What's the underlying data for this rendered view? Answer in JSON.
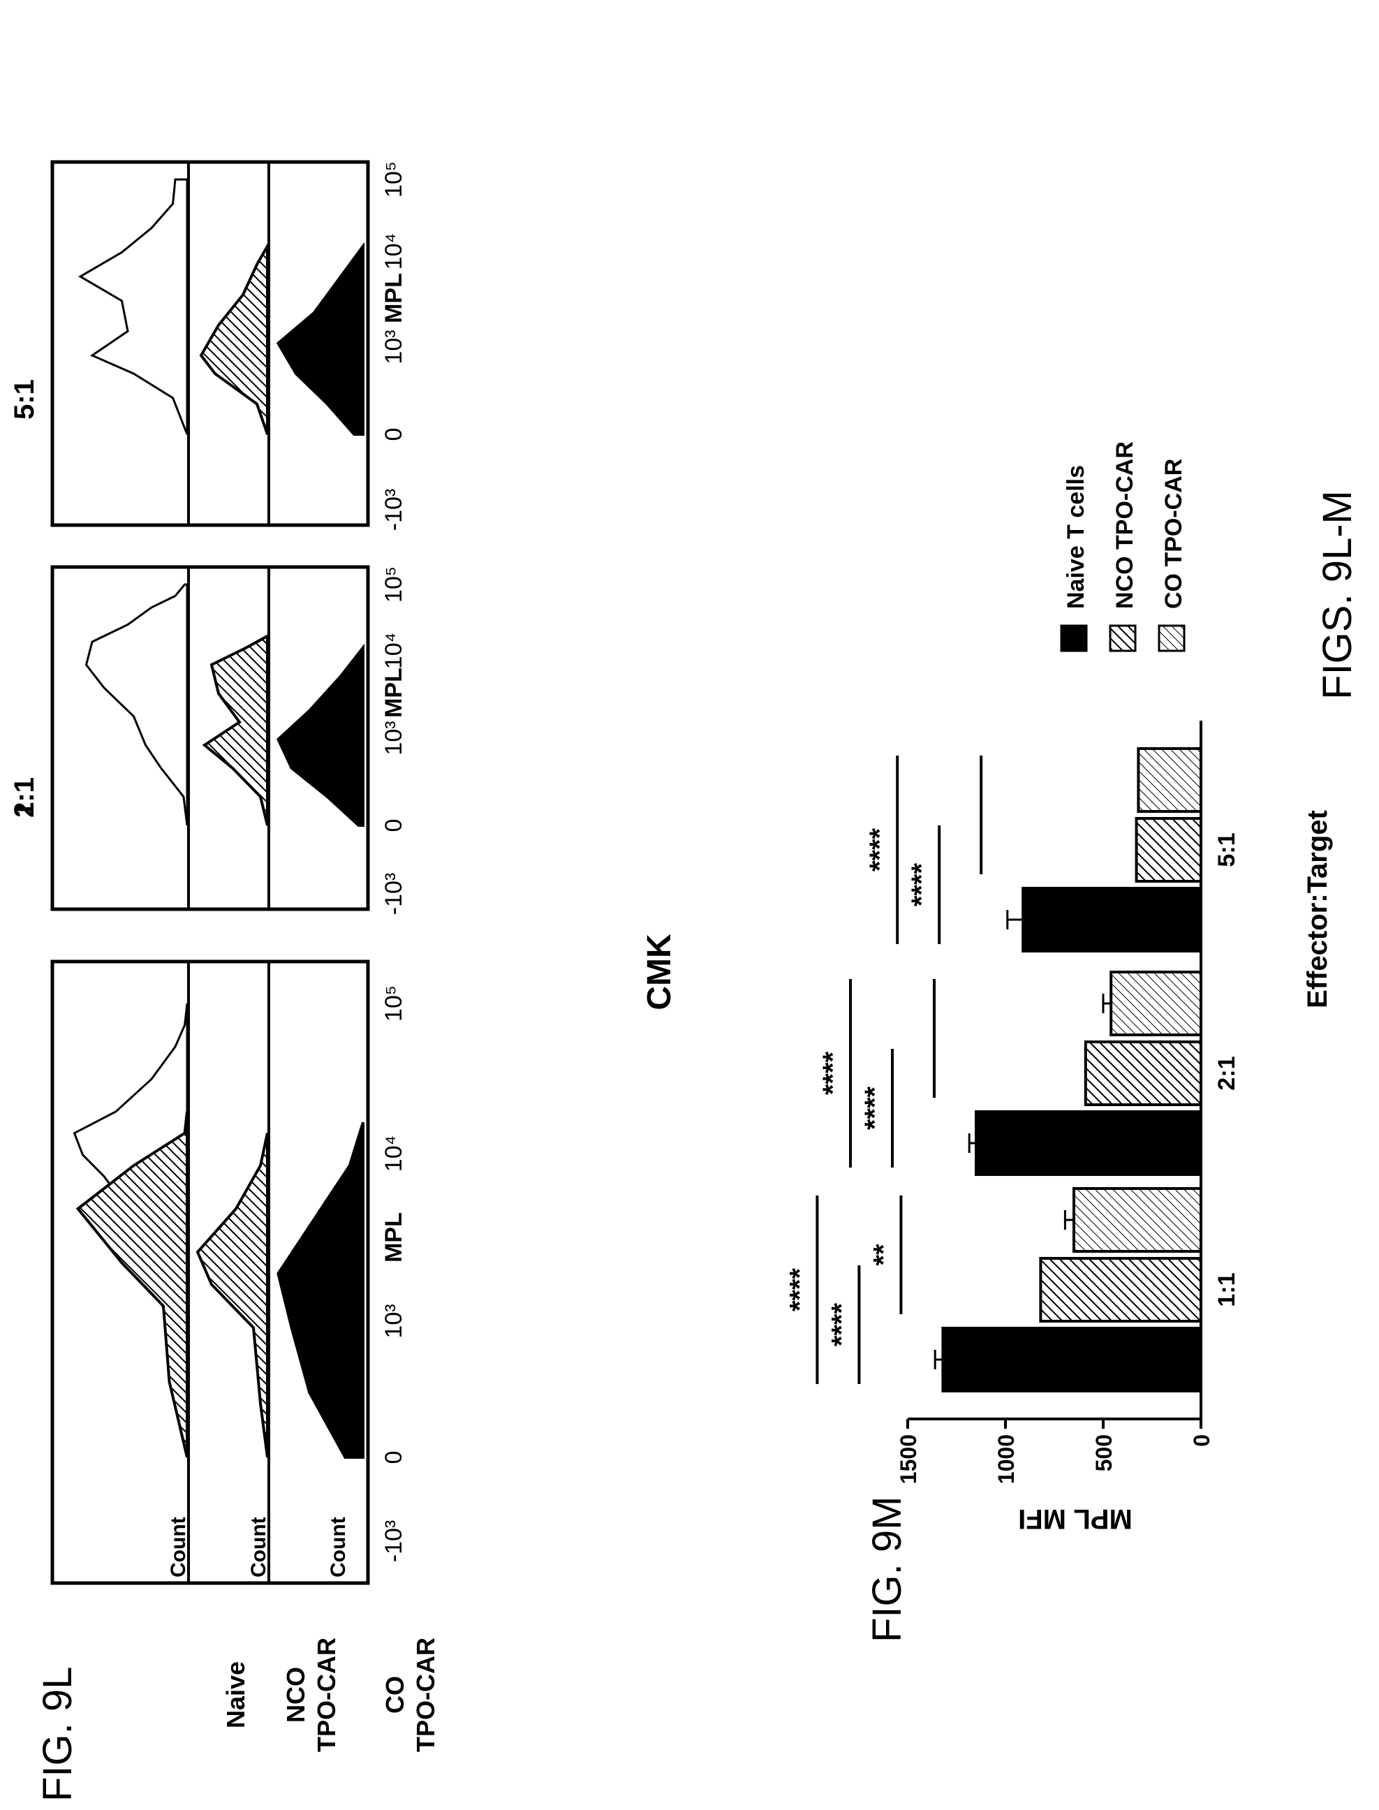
{
  "figure_l": {
    "label": "FIG. 9L",
    "row_labels": [
      {
        "lines": [
          "Naive"
        ]
      },
      {
        "lines": [
          "NCO",
          "TPO-CAR"
        ]
      },
      {
        "lines": [
          "CO",
          "TPO-CAR"
        ]
      }
    ],
    "panels": [
      {
        "title": "1:1",
        "show_count": true
      },
      {
        "title": "2:1",
        "show_count": false
      },
      {
        "title": "5:1",
        "show_count": false
      }
    ],
    "count_label": "Count",
    "x_ticks": [
      "-10³",
      "0",
      "10³",
      "10⁴",
      "10⁵"
    ],
    "x_label": "MPL"
  },
  "figure_m": {
    "label": "FIG. 9M",
    "title": "CMK",
    "legend": [
      {
        "name": "Naive T cells",
        "fill": "solid"
      },
      {
        "name": "NCO TPO-CAR",
        "fill": "hatch"
      },
      {
        "name": "CO TPO-CAR",
        "fill": "light-hatch"
      }
    ],
    "significance": {
      "1:1": {
        "naive_vs_co": "****",
        "naive_vs_nco": "****",
        "nco_vs_co": "**"
      },
      "2:1": {
        "naive_vs_co": "****",
        "naive_vs_nco": "****",
        "nco_vs_co": ""
      },
      "5:1": {
        "naive_vs_co": "****",
        "naive_vs_nco": "****",
        "nco_vs_co": ""
      }
    }
  },
  "figure_caption": "FIGS. 9L-M",
  "chart_data": [
    {
      "type": "area",
      "name": "FIG. 9L histograms",
      "x_scale": "biexponential",
      "xlabel": "MPL",
      "ylabel": "Count",
      "x_tick_labels": [
        "-10³",
        "0",
        "10³",
        "10⁴",
        "10⁵"
      ],
      "rows": [
        "Naive",
        "NCO TPO-CAR",
        "CO TPO-CAR"
      ],
      "panels": [
        "1:1",
        "2:1",
        "5:1"
      ],
      "curves": [
        {
          "panel": "1:1",
          "series": "Naive",
          "fill": "none",
          "points": [
            [
              0,
              0
            ],
            [
              0.3,
              0.05
            ],
            [
              1.0,
              0.12
            ],
            [
              1.6,
              0.25
            ],
            [
              2.3,
              0.5
            ],
            [
              2.6,
              0.7
            ],
            [
              2.8,
              0.88
            ],
            [
              3.0,
              0.95
            ],
            [
              3.2,
              0.6
            ],
            [
              3.5,
              0.3
            ],
            [
              3.8,
              0.1
            ],
            [
              4.0,
              0.02
            ],
            [
              4.2,
              0
            ]
          ]
        },
        {
          "panel": "1:1",
          "series": "Naive",
          "fill": "hatch",
          "points": [
            [
              0,
              0
            ],
            [
              0.7,
              0.15
            ],
            [
              1.4,
              0.2
            ],
            [
              1.8,
              0.55
            ],
            [
              2.3,
              0.92
            ],
            [
              2.7,
              0.45
            ],
            [
              3.0,
              0.02
            ],
            [
              3.2,
              0
            ]
          ]
        },
        {
          "panel": "1:1",
          "series": "NCO TPO-CAR",
          "fill": "hatch",
          "points": [
            [
              0,
              0
            ],
            [
              0.5,
              0.1
            ],
            [
              1.2,
              0.2
            ],
            [
              1.6,
              0.8
            ],
            [
              1.9,
              1.0
            ],
            [
              2.3,
              0.45
            ],
            [
              2.7,
              0.1
            ],
            [
              3.0,
              0
            ]
          ]
        },
        {
          "panel": "1:1",
          "series": "CO TPO-CAR",
          "fill": "solid",
          "points": [
            [
              0,
              0.2
            ],
            [
              0.6,
              0.6
            ],
            [
              1.2,
              0.8
            ],
            [
              1.7,
              0.95
            ],
            [
              2.2,
              0.55
            ],
            [
              2.7,
              0.15
            ],
            [
              3.1,
              0
            ]
          ]
        },
        {
          "panel": "2:1",
          "series": "Naive",
          "fill": "none",
          "points": [
            [
              0,
              0
            ],
            [
              0.5,
              0.03
            ],
            [
              1.0,
              0.22
            ],
            [
              1.4,
              0.35
            ],
            [
              1.9,
              0.45
            ],
            [
              2.4,
              0.7
            ],
            [
              2.8,
              0.85
            ],
            [
              3.2,
              0.8
            ],
            [
              3.5,
              0.5
            ],
            [
              3.8,
              0.3
            ],
            [
              4.0,
              0.1
            ],
            [
              4.2,
              0.02
            ]
          ]
        },
        {
          "panel": "2:1",
          "series": "NCO TPO-CAR",
          "fill": "hatch",
          "points": [
            [
              0,
              0
            ],
            [
              0.5,
              0.1
            ],
            [
              1.0,
              0.5
            ],
            [
              1.4,
              0.9
            ],
            [
              1.8,
              0.4
            ],
            [
              2.3,
              0.7
            ],
            [
              2.8,
              0.8
            ],
            [
              3.1,
              0.3
            ],
            [
              3.3,
              0
            ]
          ]
        },
        {
          "panel": "2:1",
          "series": "CO TPO-CAR",
          "fill": "solid",
          "points": [
            [
              0,
              0.05
            ],
            [
              0.5,
              0.4
            ],
            [
              1.0,
              0.8
            ],
            [
              1.5,
              0.95
            ],
            [
              2.0,
              0.6
            ],
            [
              2.6,
              0.25
            ],
            [
              3.1,
              0
            ]
          ]
        },
        {
          "panel": "5:1",
          "series": "Naive",
          "fill": "none",
          "points": [
            [
              0,
              0
            ],
            [
              0.6,
              0.12
            ],
            [
              1.0,
              0.45
            ],
            [
              1.3,
              0.8
            ],
            [
              1.7,
              0.5
            ],
            [
              2.2,
              0.55
            ],
            [
              2.6,
              0.9
            ],
            [
              3.0,
              0.55
            ],
            [
              3.4,
              0.3
            ],
            [
              3.8,
              0.12
            ],
            [
              4.2,
              0.1
            ]
          ]
        },
        {
          "panel": "5:1",
          "series": "NCO TPO-CAR",
          "fill": "hatch",
          "points": [
            [
              0,
              0
            ],
            [
              0.5,
              0.15
            ],
            [
              1.0,
              0.75
            ],
            [
              1.3,
              0.95
            ],
            [
              1.8,
              0.7
            ],
            [
              2.3,
              0.35
            ],
            [
              2.8,
              0.15
            ],
            [
              3.1,
              0
            ]
          ]
        },
        {
          "panel": "5:1",
          "series": "CO TPO-CAR",
          "fill": "solid",
          "points": [
            [
              0,
              0.1
            ],
            [
              0.5,
              0.4
            ],
            [
              1.0,
              0.75
            ],
            [
              1.5,
              0.95
            ],
            [
              2.0,
              0.55
            ],
            [
              2.6,
              0.25
            ],
            [
              3.1,
              0
            ]
          ]
        }
      ]
    },
    {
      "type": "bar",
      "name": "FIG. 9M",
      "title": "CMK",
      "categories": [
        "1:1",
        "2:1",
        "5:1"
      ],
      "series": [
        {
          "name": "Naive T cells",
          "values": [
            1320,
            1150,
            910
          ],
          "errors": [
            40,
            35,
            80
          ]
        },
        {
          "name": "NCO TPO-CAR",
          "values": [
            820,
            590,
            330
          ],
          "errors": [
            0,
            0,
            0
          ]
        },
        {
          "name": "CO TPO-CAR",
          "values": [
            650,
            460,
            320
          ],
          "errors": [
            45,
            40,
            0
          ]
        }
      ],
      "xlabel": "Effector:Target",
      "ylabel": "MPL MFI",
      "ylim": [
        0,
        1500
      ],
      "y_ticks": [
        0,
        500,
        1000,
        1500
      ],
      "legend_position": "right"
    }
  ]
}
